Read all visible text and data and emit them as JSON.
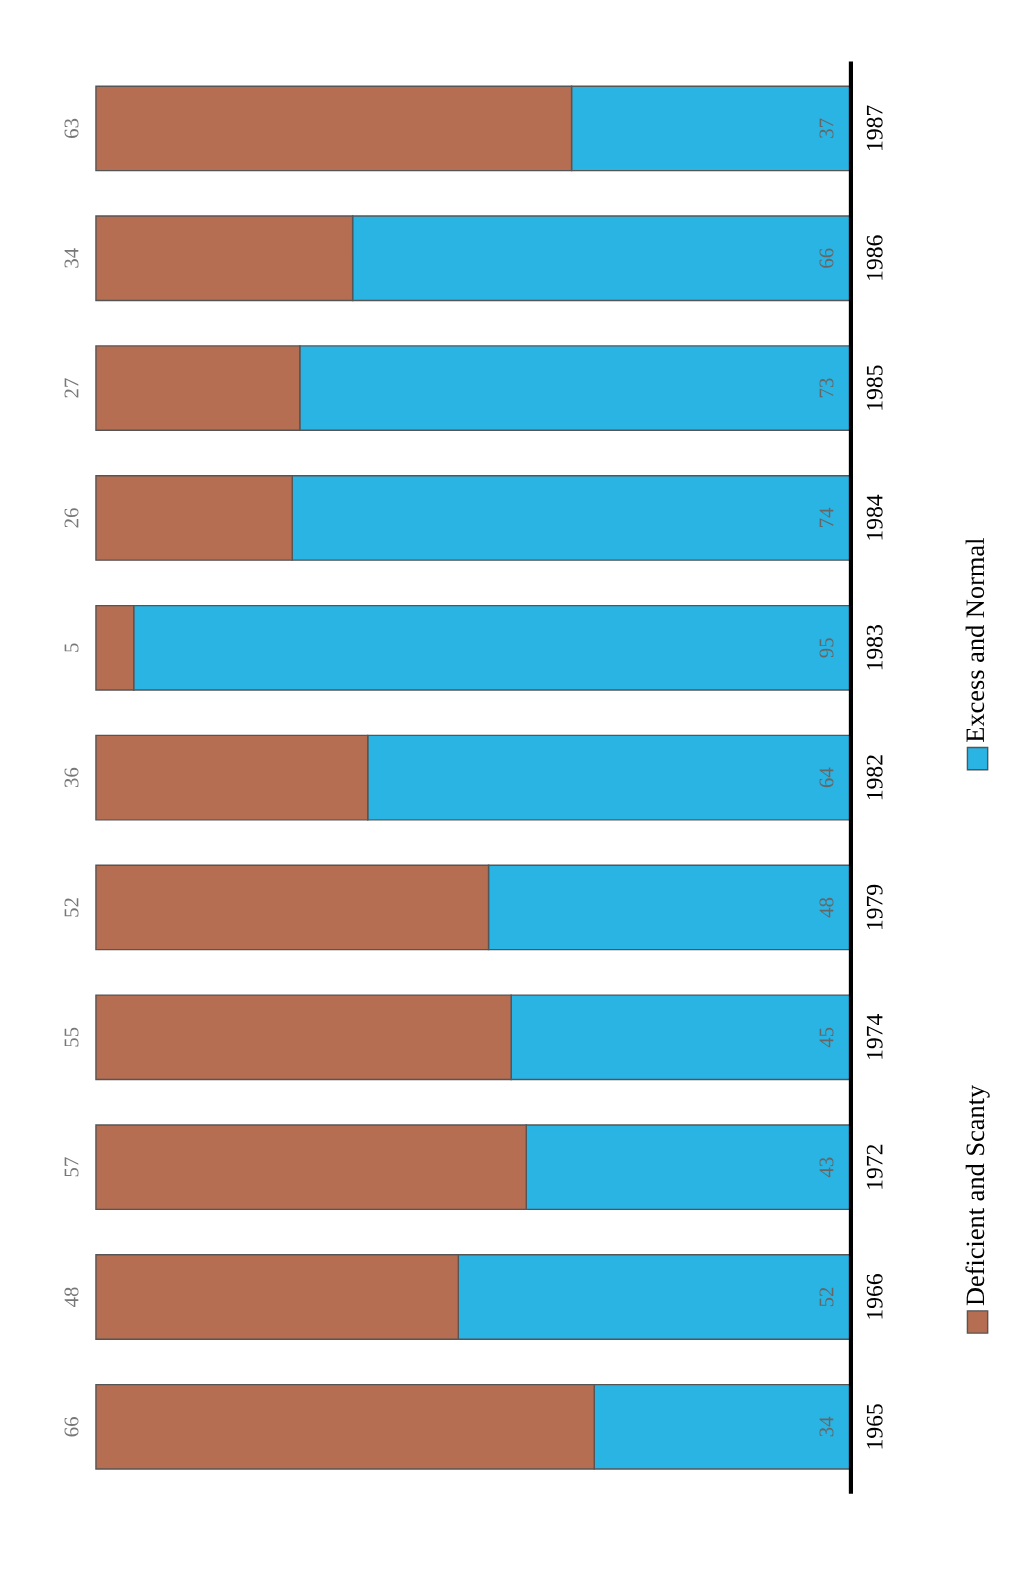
{
  "chart_data": {
    "type": "bar",
    "orientation": "horizontal",
    "stacked": true,
    "data_labels": true,
    "legend": "bottom",
    "categories": [
      "1987",
      "1986",
      "1985",
      "1984",
      "1983",
      "1982",
      "1979",
      "1974",
      "1972",
      "1966",
      "1965"
    ],
    "series": [
      {
        "name": "Excess and Normal",
        "color": "#2ab4e4",
        "values": [
          37,
          66,
          73,
          74,
          95,
          64,
          48,
          45,
          43,
          52,
          34
        ]
      },
      {
        "name": "Deficient and Scanty",
        "color": "#b56e52",
        "values": [
          63,
          34,
          27,
          26,
          5,
          36,
          52,
          55,
          57,
          48,
          66
        ]
      }
    ]
  }
}
